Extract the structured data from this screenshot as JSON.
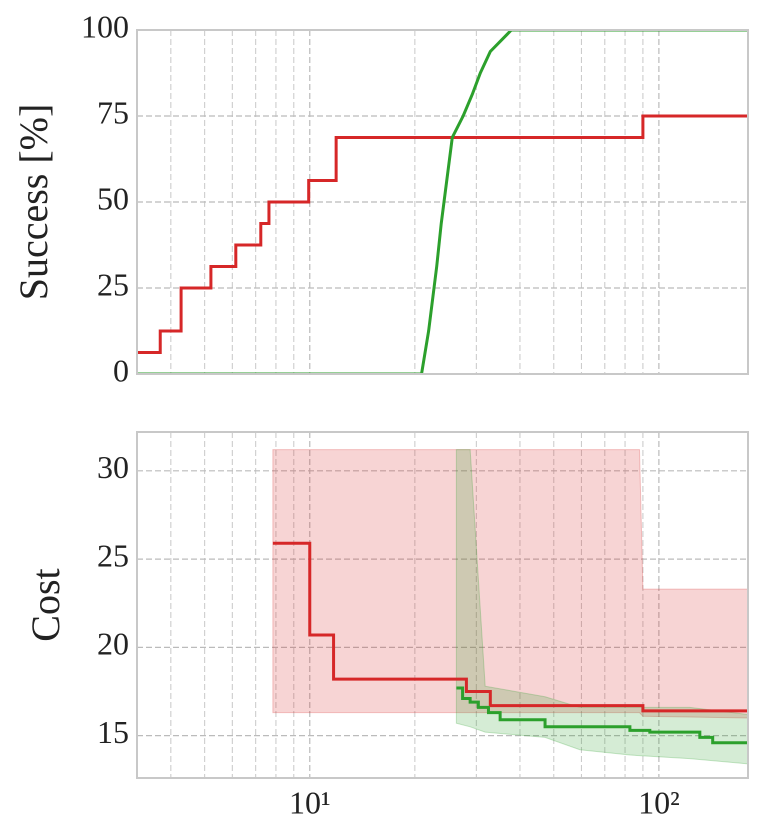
{
  "chart_data": [
    {
      "type": "line",
      "ylabel": "Success [%]",
      "sharex": true,
      "grid": true,
      "ylim": [
        0,
        100
      ],
      "yticks": [
        0,
        25,
        50,
        75,
        100
      ],
      "series": [
        {
          "color": "#d62728",
          "drawstyle": "steps-post",
          "x": [
            3.2,
            3.73,
            4.28,
            5.21,
            6.14,
            7.24,
            7.64,
            9.93,
            11.9,
            90,
            180
          ],
          "values": [
            6.25,
            12.5,
            25,
            31.25,
            37.5,
            43.75,
            50,
            56.25,
            68.75,
            75,
            75
          ]
        },
        {
          "color": "#2ca02c",
          "drawstyle": "default",
          "x": [
            3.2,
            20.9,
            21.9,
            23.1,
            23.8,
            25.6,
            27.5,
            29.2,
            30.8,
            32.9,
            37.8,
            180
          ],
          "values": [
            0,
            0,
            12.5,
            31.25,
            43.75,
            68.75,
            75,
            81.25,
            87.5,
            93.75,
            100,
            100
          ]
        }
      ]
    },
    {
      "type": "line",
      "ylabel": "Cost",
      "xscale": "log",
      "grid": true,
      "minor_grid": true,
      "xlim": [
        3.2,
        180
      ],
      "xticks": [
        {
          "value": 10,
          "label": "10¹"
        },
        {
          "value": 100,
          "label": "10²"
        }
      ],
      "ylim": [
        12.6,
        32.2
      ],
      "yticks": [
        15,
        20,
        25,
        30
      ],
      "bands": [
        {
          "color": "#d62728",
          "x": [
            7.84,
            88,
            90,
            180
          ],
          "upper": [
            31.2,
            31.2,
            23.3,
            23.3
          ],
          "lower": [
            16.3,
            16.3,
            16.1,
            16.0
          ]
        },
        {
          "color": "#2ca02c",
          "x": [
            26.3,
            28.8,
            31.8,
            47.2,
            59.4,
            82.6,
            122.6,
            180
          ],
          "upper": [
            31.2,
            31.2,
            17.8,
            17.2,
            16.6,
            16.6,
            16.6,
            16.2
          ],
          "lower": [
            15.7,
            15.5,
            15.2,
            14.9,
            14.2,
            13.9,
            13.7,
            13.4
          ]
        }
      ],
      "series": [
        {
          "color": "#d62728",
          "drawstyle": "steps-post",
          "x": [
            7.84,
            10.0,
            11.7,
            28.1,
            32.9,
            90,
            180
          ],
          "values": [
            25.9,
            20.7,
            18.2,
            17.5,
            16.7,
            16.4,
            16.4
          ]
        },
        {
          "color": "#2ca02c",
          "drawstyle": "steps-post",
          "x": [
            26.3,
            27.4,
            28.8,
            30.4,
            32.5,
            35.1,
            47.2,
            82.6,
            94.2,
            131,
            142.6,
            180
          ],
          "values": [
            17.7,
            17.1,
            16.9,
            16.6,
            16.3,
            15.9,
            15.5,
            15.3,
            15.2,
            14.9,
            14.6,
            14.6
          ]
        }
      ]
    }
  ]
}
